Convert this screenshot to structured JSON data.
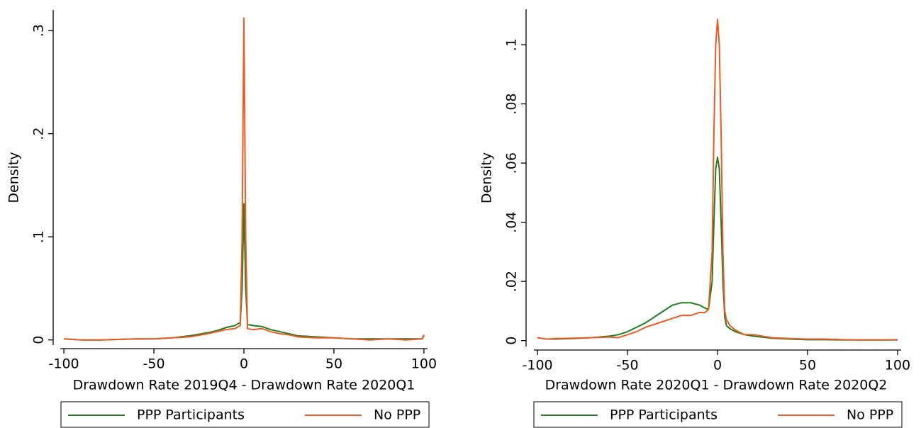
{
  "chart_data": [
    {
      "type": "line",
      "ylabel": "Density",
      "xlabel": "Drawdown Rate 2019Q4 - Drawdown Rate 2020Q1",
      "x": [
        -100,
        -90,
        -80,
        -70,
        -60,
        -50,
        -40,
        -30,
        -20,
        -15,
        -10,
        -5,
        -2,
        -1,
        0,
        1,
        2,
        5,
        10,
        15,
        20,
        25,
        30,
        40,
        50,
        60,
        70,
        80,
        90,
        99,
        100
      ],
      "series": [
        {
          "name": "PPP Participants",
          "color": "#1f7f1f",
          "values": [
            0.001,
            0,
            0,
            0.0005,
            0.001,
            0.001,
            0.002,
            0.004,
            0.007,
            0.009,
            0.012,
            0.014,
            0.017,
            0.05,
            0.132,
            0.05,
            0.015,
            0.014,
            0.013,
            0.01,
            0.008,
            0.006,
            0.004,
            0.003,
            0.002,
            0.001,
            0.001,
            0.001,
            0.001,
            0.001,
            0.004
          ]
        },
        {
          "name": "No PPP",
          "color": "#f05a22",
          "values": [
            0.001,
            0,
            0,
            0.0005,
            0.001,
            0.001,
            0.002,
            0.003,
            0.006,
            0.008,
            0.01,
            0.011,
            0.014,
            0.1,
            0.312,
            0.1,
            0.011,
            0.01,
            0.011,
            0.008,
            0.006,
            0.005,
            0.003,
            0.002,
            0.002,
            0.001,
            0,
            0.001,
            0,
            0.001,
            0.005
          ]
        }
      ],
      "xlim": [
        -102,
        102
      ],
      "xticks": [
        -100,
        -50,
        0,
        50,
        100
      ],
      "ylim": [
        -0.005,
        0.32
      ],
      "yticks": [
        0,
        {
          "value": 0.1,
          "label": ".1"
        },
        {
          "value": 0.2,
          "label": ".2"
        },
        {
          "value": 0.3,
          "label": ".3"
        }
      ],
      "grid": false,
      "legend": "bottom"
    },
    {
      "type": "line",
      "ylabel": "Density",
      "xlabel": "Drawdown Rate 2020Q1 - Drawdown Rate 2020Q2",
      "x": [
        -100,
        -95,
        -90,
        -80,
        -70,
        -60,
        -55,
        -50,
        -45,
        -40,
        -35,
        -30,
        -25,
        -20,
        -15,
        -10,
        -7,
        -5,
        -3,
        -2,
        -1,
        0,
        1,
        2,
        3,
        4,
        5,
        7,
        10,
        15,
        20,
        30,
        40,
        50,
        60,
        70,
        80,
        90,
        100
      ],
      "series": [
        {
          "name": "PPP Participants",
          "color": "#1f7f1f",
          "values": [
            0.001,
            0.0005,
            0.0005,
            0.0007,
            0.001,
            0.0015,
            0.002,
            0.003,
            0.0045,
            0.006,
            0.008,
            0.01,
            0.012,
            0.0128,
            0.0128,
            0.012,
            0.011,
            0.0105,
            0.02,
            0.04,
            0.058,
            0.062,
            0.058,
            0.04,
            0.02,
            0.008,
            0.005,
            0.004,
            0.003,
            0.002,
            0.0015,
            0.0008,
            0.0005,
            0.0003,
            0.0003,
            0.0002,
            0.0002,
            0.0002,
            0.0002
          ]
        },
        {
          "name": "No PPP",
          "color": "#f05a22",
          "values": [
            0.001,
            0.0005,
            0.0007,
            0.0008,
            0.001,
            0.0012,
            0.001,
            0.002,
            0.003,
            0.0045,
            0.0055,
            0.0065,
            0.0075,
            0.0085,
            0.0085,
            0.0095,
            0.0095,
            0.0105,
            0.03,
            0.07,
            0.1,
            0.1085,
            0.1,
            0.07,
            0.03,
            0.01,
            0.007,
            0.005,
            0.0035,
            0.002,
            0.002,
            0.001,
            0.0007,
            0.0005,
            0.0005,
            0.0003,
            0.0002,
            0.0002,
            0.0003
          ]
        }
      ],
      "xlim": [
        -102,
        102
      ],
      "xticks": [
        -100,
        -50,
        0,
        50,
        100
      ],
      "ylim": [
        -0.002,
        0.112
      ],
      "yticks": [
        0,
        {
          "value": 0.02,
          "label": ".02"
        },
        {
          "value": 0.04,
          "label": ".04"
        },
        {
          "value": 0.06,
          "label": ".06"
        },
        {
          "value": 0.08,
          "label": ".08"
        },
        {
          "value": 0.1,
          "label": ".1"
        }
      ],
      "grid": false,
      "legend": "bottom"
    }
  ]
}
